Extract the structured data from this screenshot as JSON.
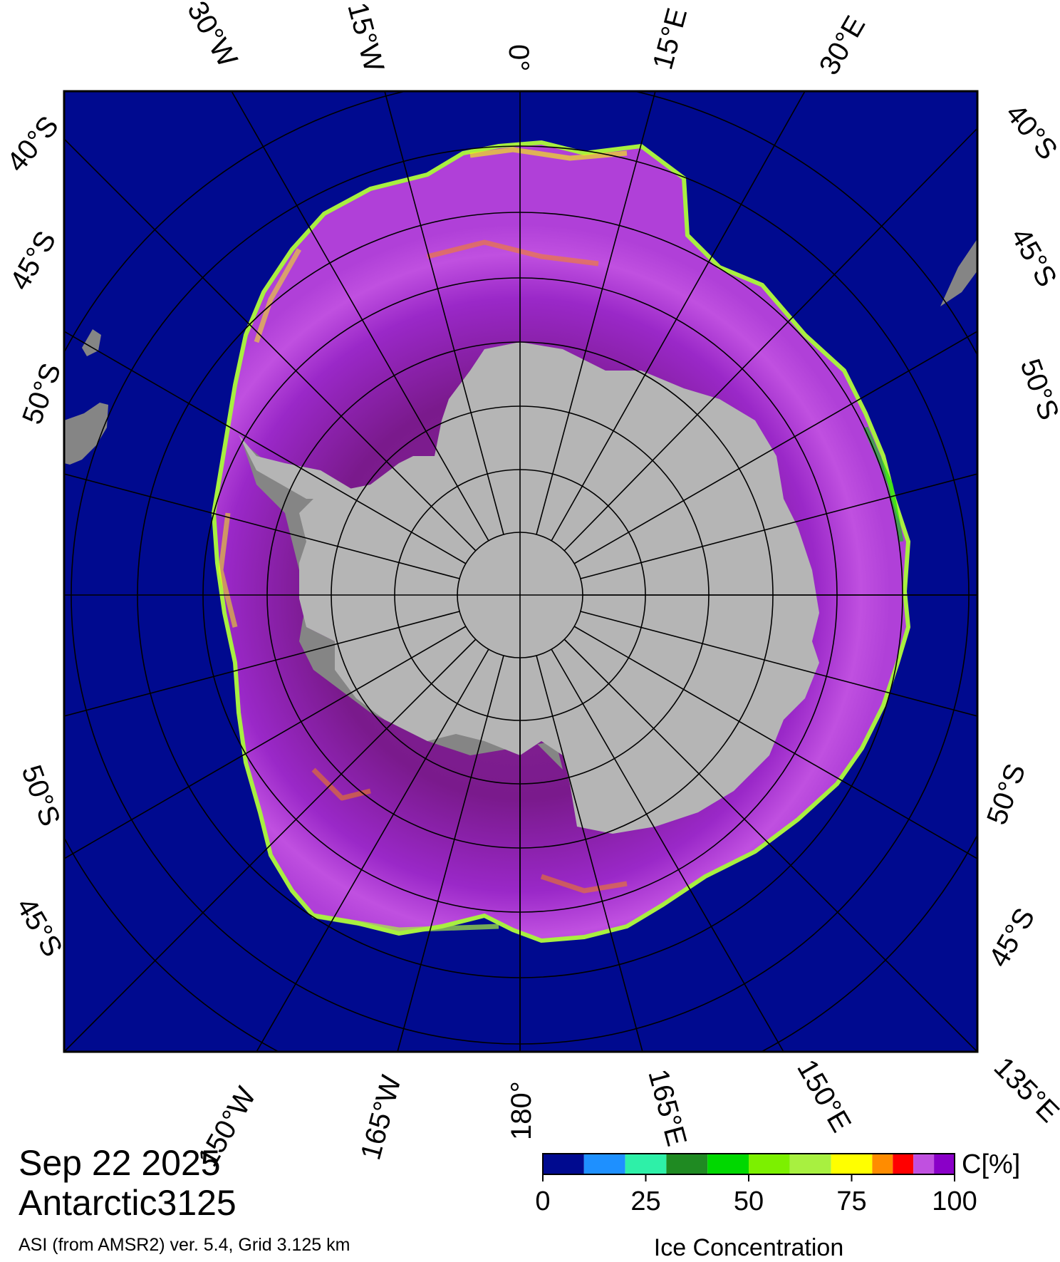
{
  "map": {
    "date": "Sep 22 2025",
    "product": "Antarctic3125",
    "source": "ASI (from AMSR2) ver. 5.4,  Grid 3.125 km",
    "colors": {
      "ocean": "#000a8f",
      "land": "#b5b5b5",
      "ice_shelf": "#858585",
      "frame": "#000000"
    },
    "top_labels": [
      "30°W",
      "15°W",
      "0°",
      "15°E",
      "30°E"
    ],
    "bottom_labels": [
      "150°W",
      "165°W",
      "180°",
      "165°E",
      "150°E",
      "135°E"
    ],
    "left_labels": [
      "40°S",
      "45°S",
      "50°S",
      "50°S",
      "45°S"
    ],
    "right_labels": [
      "40°S",
      "45°S",
      "50°S",
      "50°S",
      "45°S"
    ]
  },
  "colorbar": {
    "unit": "C[%]",
    "title": "Ice Concentration",
    "ticks": [
      "0",
      "25",
      "50",
      "75",
      "100"
    ],
    "bins": [
      {
        "range": [
          0,
          10
        ],
        "color": "#000a8f"
      },
      {
        "range": [
          10,
          20
        ],
        "color": "#1e90ff"
      },
      {
        "range": [
          20,
          30
        ],
        "color": "#2ef0a8"
      },
      {
        "range": [
          30,
          40
        ],
        "color": "#1f8a22"
      },
      {
        "range": [
          40,
          50
        ],
        "color": "#00d800"
      },
      {
        "range": [
          50,
          60
        ],
        "color": "#7cf000"
      },
      {
        "range": [
          60,
          70
        ],
        "color": "#a8f040"
      },
      {
        "range": [
          70,
          80
        ],
        "color": "#ffff00"
      },
      {
        "range": [
          80,
          85
        ],
        "color": "#ff8c00"
      },
      {
        "range": [
          85,
          90
        ],
        "color": "#ff0000"
      },
      {
        "range": [
          90,
          95
        ],
        "color": "#c050e0"
      },
      {
        "range": [
          95,
          100
        ],
        "color": "#8a00c8"
      }
    ]
  }
}
